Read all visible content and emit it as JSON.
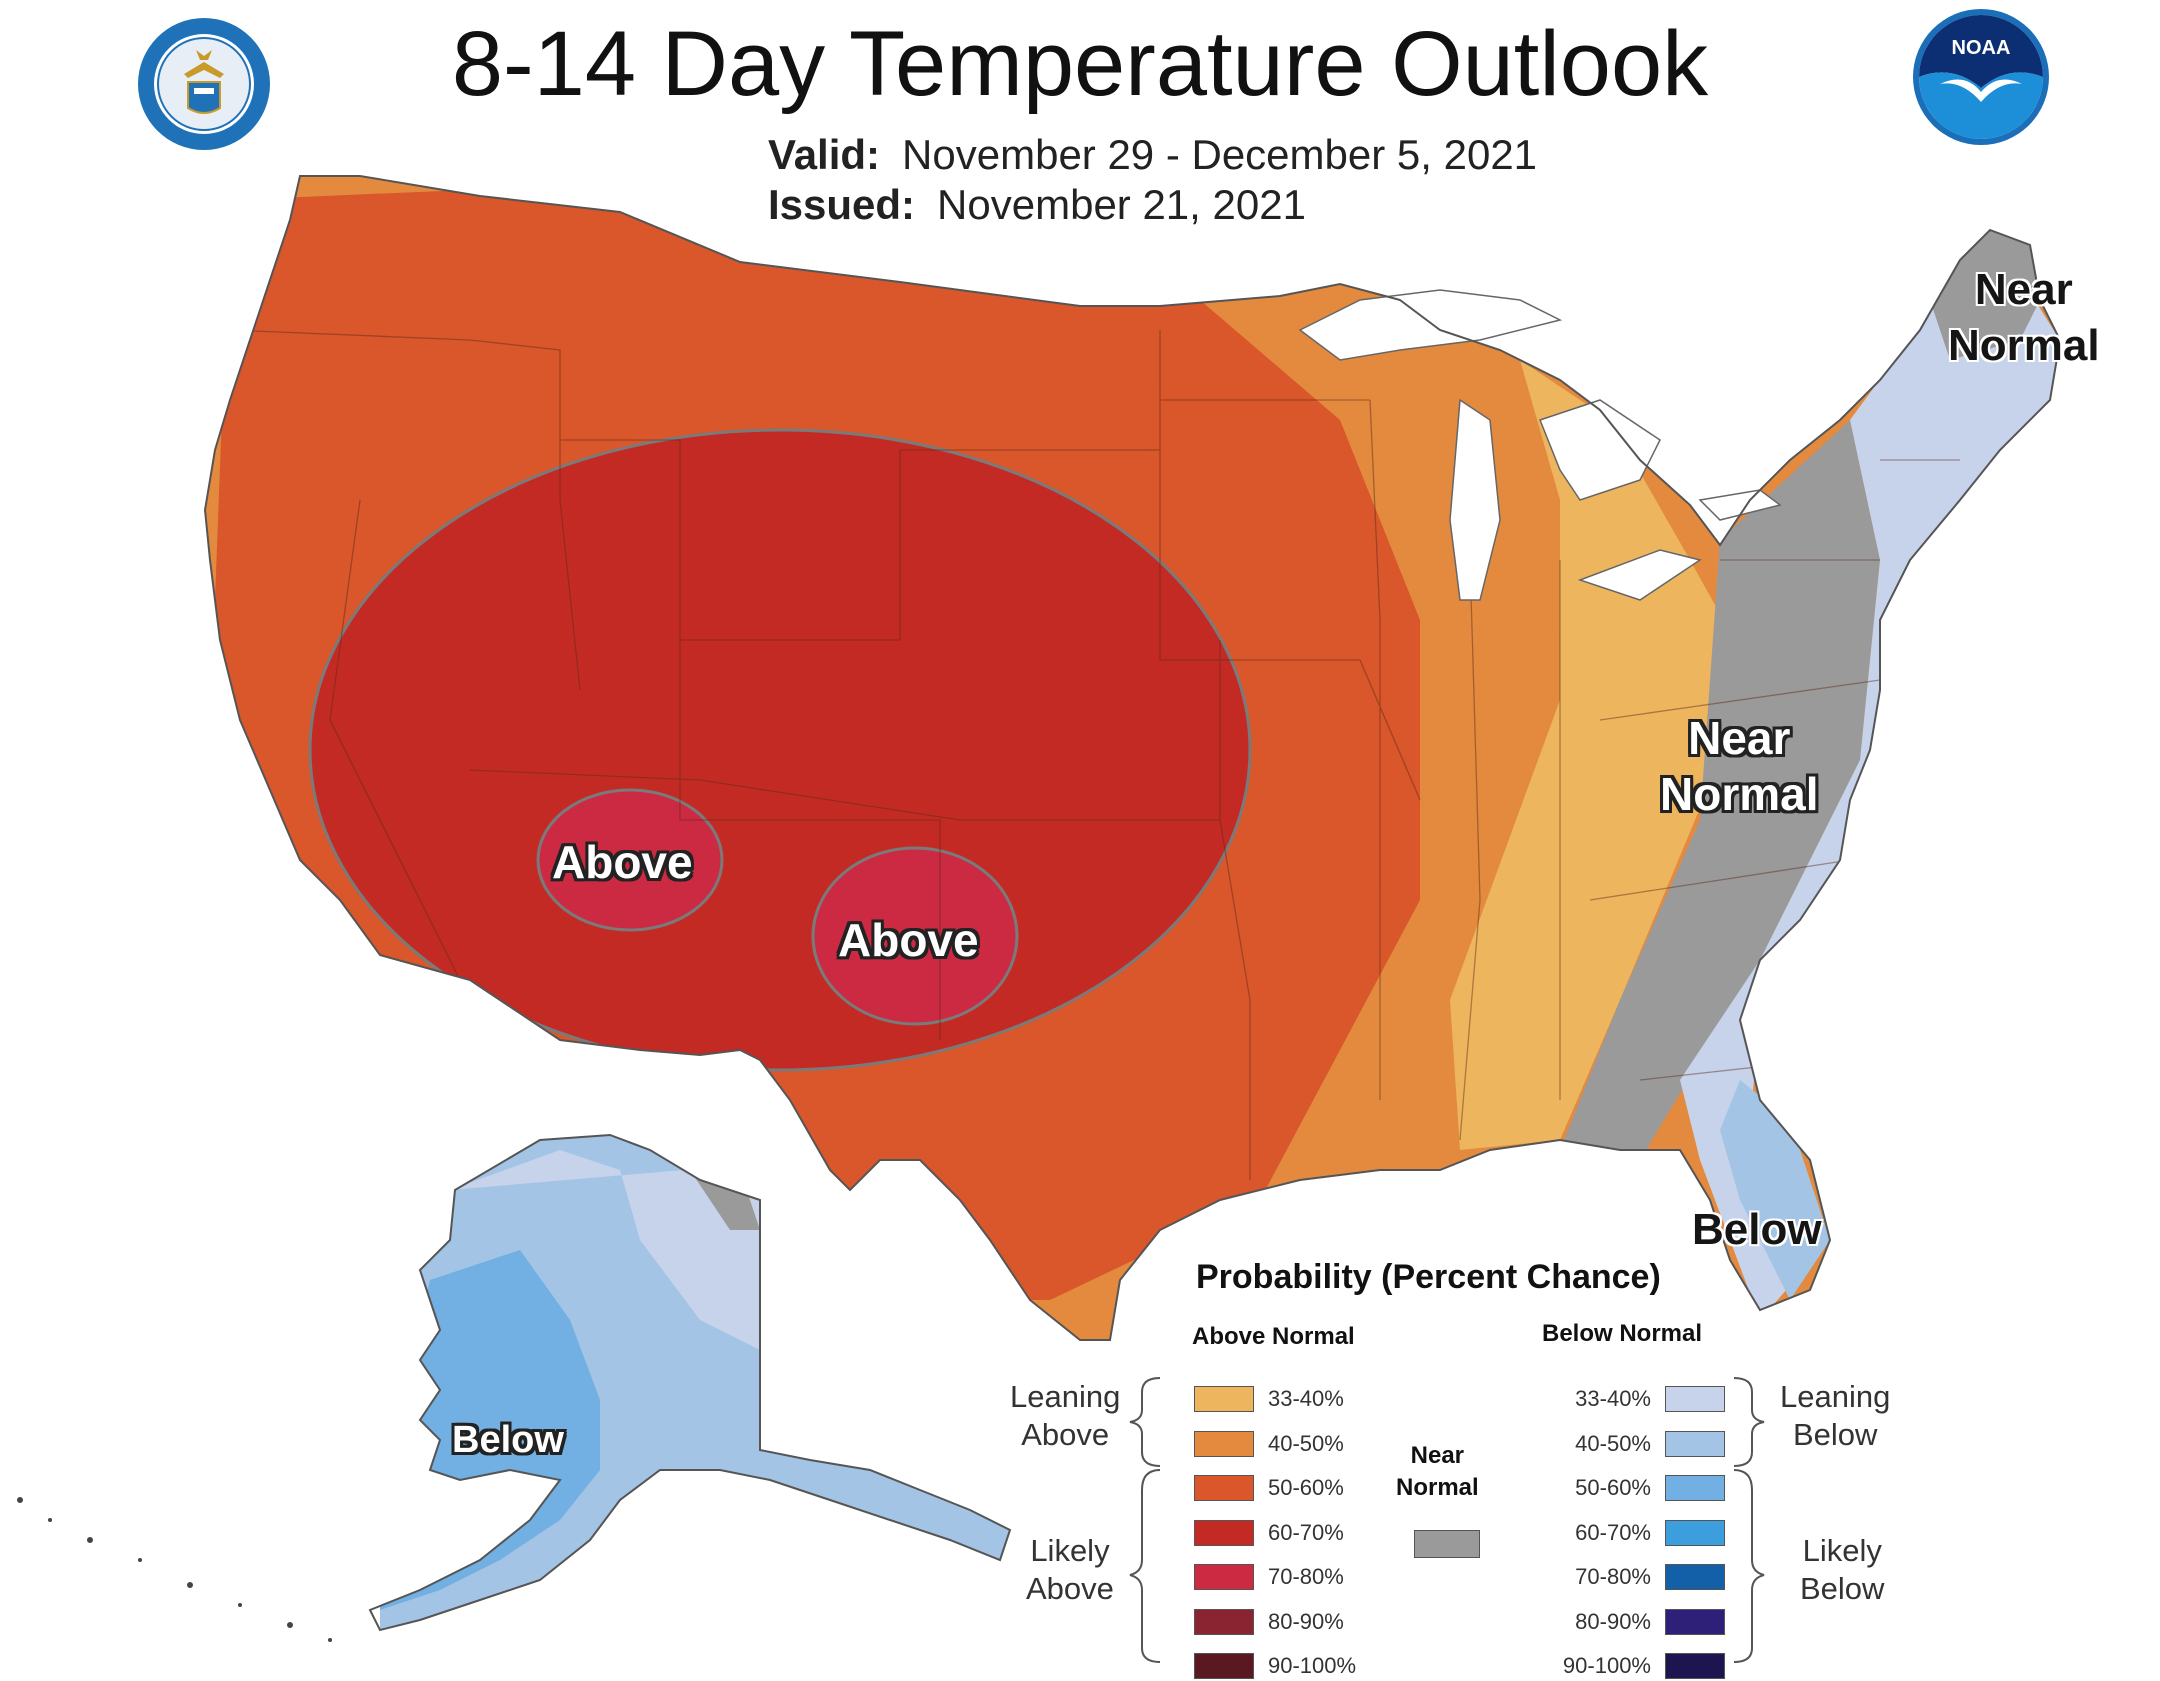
{
  "header": {
    "title": "8-14 Day Temperature Outlook",
    "valid_label": "Valid:",
    "valid_value": "November 29 - December 5, 2021",
    "issued_label": "Issued:",
    "issued_value": "November 21, 2021"
  },
  "logos": {
    "left": "department-of-commerce-seal",
    "right": "noaa-logo",
    "noaa_text": "NOAA"
  },
  "map_labels": {
    "above_sw": "Above",
    "above_nm": "Above",
    "near_normal_ne_line1": "Near",
    "near_normal_ne_line2": "Normal",
    "near_normal_appalachia_line1": "Near",
    "near_normal_appalachia_line2": "Normal",
    "below_florida": "Below",
    "below_alaska": "Below"
  },
  "legend": {
    "title": "Probability (Percent Chance)",
    "above_heading": "Above Normal",
    "below_heading": "Below Normal",
    "near_normal_line1": "Near",
    "near_normal_line2": "Normal",
    "leaning_above_line1": "Leaning",
    "leaning_above_line2": "Above",
    "likely_above_line1": "Likely",
    "likely_above_line2": "Above",
    "leaning_below_line1": "Leaning",
    "leaning_below_line2": "Below",
    "likely_below_line1": "Likely",
    "likely_below_line2": "Below",
    "above_categories": [
      {
        "label": "33-40%",
        "color": "#edb55e"
      },
      {
        "label": "40-50%",
        "color": "#e38a3e"
      },
      {
        "label": "50-60%",
        "color": "#d9572a"
      },
      {
        "label": "60-70%",
        "color": "#c42a24"
      },
      {
        "label": "70-80%",
        "color": "#cb2a42"
      },
      {
        "label": "80-90%",
        "color": "#8a2430"
      },
      {
        "label": "90-100%",
        "color": "#5a1820"
      }
    ],
    "below_categories": [
      {
        "label": "33-40%",
        "color": "#c6d3ea"
      },
      {
        "label": "40-50%",
        "color": "#a3c4e4"
      },
      {
        "label": "50-60%",
        "color": "#72afe2"
      },
      {
        "label": "60-70%",
        "color": "#3d9ede"
      },
      {
        "label": "70-80%",
        "color": "#1460a8"
      },
      {
        "label": "80-90%",
        "color": "#2e1f78"
      },
      {
        "label": "90-100%",
        "color": "#1c1550"
      }
    ],
    "near_normal_color": "#9a9a9a"
  }
}
